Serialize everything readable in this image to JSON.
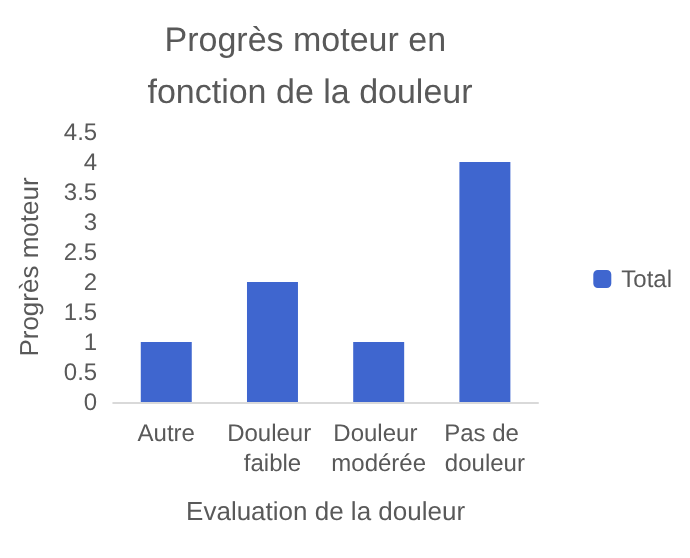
{
  "chart_data": {
    "type": "bar",
    "title": "Progrès moteur en fonction de la douleur",
    "xlabel": "Evaluation de la douleur",
    "ylabel": "Progrès moteur",
    "categories": [
      "Autre",
      "Douleur faible",
      "Douleur modérée",
      "Pas de douleur"
    ],
    "series": [
      {
        "name": "Total",
        "color": "#3f66cf",
        "values": [
          1,
          2,
          1,
          4
        ]
      }
    ],
    "ylim": [
      0,
      4.5
    ],
    "yticks": [
      0,
      0.5,
      1,
      1.5,
      2,
      2.5,
      3,
      3.5,
      4,
      4.5
    ],
    "grid": false,
    "legend": "right"
  }
}
